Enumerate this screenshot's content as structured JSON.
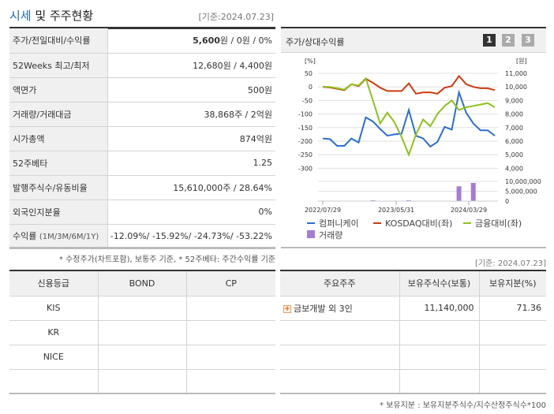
{
  "header": {
    "title_accent": "시세",
    "title_rest": " 및 주주현황",
    "as_of": "[기준:2024.07.23]"
  },
  "price_table": {
    "rows": [
      {
        "label": "주가/전일대비/수익률",
        "value_bold": "5,600",
        "value_rest": "원 / 0원 / 0%"
      },
      {
        "label": "52Weeks 최고/최저",
        "value": "12,680원 / 4,400원"
      },
      {
        "label": "액면가",
        "value": "500원"
      },
      {
        "label": "거래량/거래대금",
        "value": "38,868주 / 2억원"
      },
      {
        "label": "시가총액",
        "value": "874억원"
      },
      {
        "label": "52주베타",
        "value": "1.25"
      },
      {
        "label": "발행주식수/유동비율",
        "value": "15,610,000주 / 28.64%"
      },
      {
        "label": "외국인지분율",
        "value": "0%"
      },
      {
        "label": "수익률",
        "label_small": "(1M/3M/6M/1Y)",
        "value": "-12.09%/ -15.92%/ -24.73%/ -53.22%"
      }
    ],
    "note": "* 수정주가(차트포함), 보통주 기준, * 52주베타: 주간수익률 기준"
  },
  "chart_panel": {
    "title": "주가/상대수익률",
    "pages": [
      "1",
      "2",
      "3"
    ],
    "active_page": "1"
  },
  "chart_data": {
    "type": "line",
    "title": "주가/상대수익률",
    "left_axis": {
      "unit": "[%]",
      "ticks": [
        50,
        0,
        -50,
        -100,
        -150,
        -200,
        -250,
        -300
      ],
      "range": [
        -300,
        50
      ]
    },
    "right_axis": {
      "unit": "[원]",
      "ticks": [
        "11,000",
        "10,000",
        "9,000",
        "8,000",
        "7,000",
        "6,000",
        "5,000",
        "4,000"
      ],
      "range": [
        4000,
        11000
      ]
    },
    "volume_axis": {
      "ticks": [
        "10,000,000",
        "5,000,000",
        "0"
      ],
      "range": [
        0,
        10000000
      ]
    },
    "x_tick_labels": [
      "2022/07/29",
      "2023/05/31",
      "2024/03/29"
    ],
    "series": [
      {
        "name": "컴퍼니케이",
        "color": "#2a6fd6",
        "axis": "right",
        "values": [
          6200,
          6150,
          5650,
          5650,
          6200,
          5900,
          7750,
          7450,
          6900,
          6400,
          6500,
          6550,
          8300,
          6400,
          6200,
          5600,
          5950,
          7050,
          6850,
          9600,
          8100,
          7300,
          6800,
          6800,
          6400
        ]
      },
      {
        "name": "KOSDAQ대비(좌)",
        "color": "#d03a10",
        "axis": "left",
        "values": [
          0,
          -2,
          -7,
          -12,
          10,
          3,
          30,
          15,
          -3,
          -15,
          -15,
          -15,
          13,
          -25,
          -20,
          -20,
          -25,
          -3,
          3,
          40,
          10,
          0,
          -5,
          -5,
          -12
        ]
      },
      {
        "name": "금융대비(좌)",
        "color": "#8ec21a",
        "axis": "left",
        "values": [
          1,
          0,
          -5,
          -10,
          10,
          5,
          32,
          -50,
          -135,
          -95,
          -130,
          -185,
          -250,
          -175,
          -120,
          -145,
          -100,
          -70,
          -50,
          -85,
          -75,
          -70,
          -65,
          -60,
          -75
        ]
      },
      {
        "name": "거래량",
        "color": "#a87ad8",
        "axis": "volume",
        "type": "bar",
        "values": [
          0,
          0,
          0,
          0,
          0,
          200000,
          0,
          400000,
          0,
          0,
          0,
          0,
          400000,
          0,
          0,
          0,
          0,
          0,
          0,
          7500000,
          200000,
          9200000,
          200000,
          0,
          0
        ]
      }
    ],
    "legend": [
      "컴퍼니케이",
      "KOSDAQ대비(좌)",
      "금융대비(좌)",
      "거래량"
    ]
  },
  "holders": {
    "as_of": "[기준: 2024.07.23]",
    "headers": [
      "주요주주",
      "보유주식수(보통)",
      "보유지분(%)"
    ],
    "rows": [
      {
        "name": "금보개발 외 3인",
        "shares": "11,140,000",
        "pct": "71.36"
      }
    ],
    "note": "* 보유지분 : 보유지분주식수/지수산정주식수*100"
  },
  "credit": {
    "headers": [
      "신용등급",
      "BOND",
      "CP"
    ],
    "rows": [
      {
        "agency": "KIS",
        "bond": "",
        "cp": ""
      },
      {
        "agency": "KR",
        "bond": "",
        "cp": ""
      },
      {
        "agency": "NICE",
        "bond": "",
        "cp": ""
      },
      {
        "agency": "",
        "bond": "",
        "cp": ""
      }
    ]
  }
}
